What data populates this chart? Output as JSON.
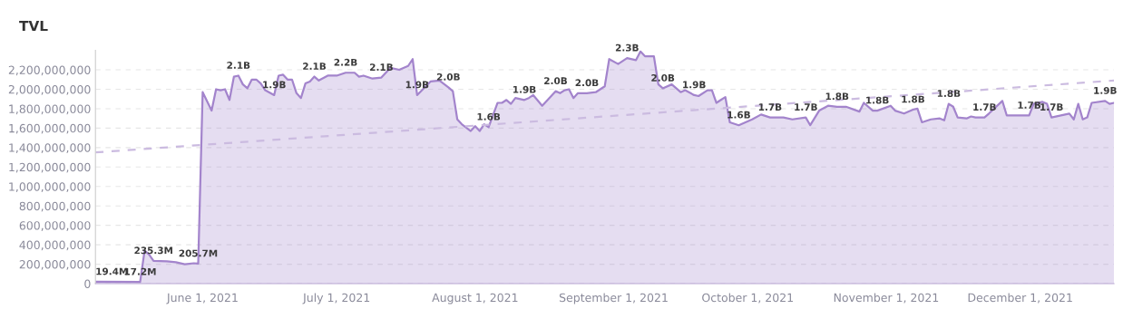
{
  "chart_data": {
    "type": "area",
    "title": "TVL",
    "x": [
      "2021-05-08",
      "2021-05-18",
      "2021-05-19",
      "2021-05-20",
      "2021-05-21",
      "2021-05-24",
      "2021-05-26",
      "2021-05-28",
      "2021-05-30",
      "2021-05-31",
      "2021-06-01",
      "2021-06-03",
      "2021-06-04",
      "2021-06-05",
      "2021-06-06",
      "2021-06-07",
      "2021-06-08",
      "2021-06-09",
      "2021-06-10",
      "2021-06-11",
      "2021-06-12",
      "2021-06-13",
      "2021-06-14",
      "2021-06-15",
      "2021-06-17",
      "2021-06-18",
      "2021-06-19",
      "2021-06-20",
      "2021-06-21",
      "2021-06-22",
      "2021-06-23",
      "2021-06-24",
      "2021-06-25",
      "2021-06-26",
      "2021-06-27",
      "2021-06-29",
      "2021-07-01",
      "2021-07-03",
      "2021-07-05",
      "2021-07-06",
      "2021-07-07",
      "2021-07-09",
      "2021-07-11",
      "2021-07-13",
      "2021-07-15",
      "2021-07-17",
      "2021-07-18",
      "2021-07-19",
      "2021-07-22",
      "2021-07-24",
      "2021-07-26",
      "2021-07-27",
      "2021-07-28",
      "2021-07-29",
      "2021-07-31",
      "2021-08-01",
      "2021-08-02",
      "2021-08-03",
      "2021-08-04",
      "2021-08-06",
      "2021-08-07",
      "2021-08-08",
      "2021-08-09",
      "2021-08-10",
      "2021-08-12",
      "2021-08-13",
      "2021-08-14",
      "2021-08-16",
      "2021-08-19",
      "2021-08-20",
      "2021-08-21",
      "2021-08-22",
      "2021-08-23",
      "2021-08-24",
      "2021-08-26",
      "2021-08-28",
      "2021-08-30",
      "2021-08-31",
      "2021-09-02",
      "2021-09-04",
      "2021-09-06",
      "2021-09-07",
      "2021-09-08",
      "2021-09-10",
      "2021-09-11",
      "2021-09-12",
      "2021-09-14",
      "2021-09-16",
      "2021-09-17",
      "2021-09-19",
      "2021-09-20",
      "2021-09-22",
      "2021-09-23",
      "2021-09-24",
      "2021-09-25",
      "2021-09-26",
      "2021-09-27",
      "2021-09-29",
      "2021-10-02",
      "2021-10-04",
      "2021-10-06",
      "2021-10-09",
      "2021-10-11",
      "2021-10-14",
      "2021-10-15",
      "2021-10-17",
      "2021-10-19",
      "2021-10-21",
      "2021-10-23",
      "2021-10-26",
      "2021-10-27",
      "2021-10-29",
      "2021-10-30",
      "2021-11-02",
      "2021-11-03",
      "2021-11-05",
      "2021-11-07",
      "2021-11-08",
      "2021-11-09",
      "2021-11-11",
      "2021-11-13",
      "2021-11-14",
      "2021-11-15",
      "2021-11-16",
      "2021-11-17",
      "2021-11-19",
      "2021-11-20",
      "2021-11-21",
      "2021-11-23",
      "2021-11-24",
      "2021-11-27",
      "2021-11-28",
      "2021-12-03",
      "2021-12-04",
      "2021-12-06",
      "2021-12-07",
      "2021-12-08",
      "2021-12-12",
      "2021-12-13",
      "2021-12-14",
      "2021-12-15",
      "2021-12-16",
      "2021-12-17",
      "2021-12-20",
      "2021-12-21",
      "2021-12-22"
    ],
    "series": [
      {
        "color": "#a384cc",
        "values": [
          19400000,
          17200000,
          340000000,
          300000000,
          235300000,
          230000000,
          220000000,
          200000000,
          210000000,
          205700000,
          1970000000,
          1780000000,
          2000000000,
          1990000000,
          2000000000,
          1890000000,
          2130000000,
          2140000000,
          2050000000,
          2010000000,
          2100000000,
          2100000000,
          2060000000,
          1990000000,
          1940000000,
          2140000000,
          2150000000,
          2100000000,
          2100000000,
          1960000000,
          1910000000,
          2060000000,
          2080000000,
          2130000000,
          2090000000,
          2140000000,
          2140000000,
          2170000000,
          2170000000,
          2130000000,
          2140000000,
          2110000000,
          2120000000,
          2220000000,
          2200000000,
          2240000000,
          2310000000,
          1940000000,
          2080000000,
          2090000000,
          2020000000,
          1980000000,
          1690000000,
          1640000000,
          1570000000,
          1620000000,
          1570000000,
          1640000000,
          1610000000,
          1860000000,
          1860000000,
          1890000000,
          1850000000,
          1910000000,
          1890000000,
          1910000000,
          1940000000,
          1830000000,
          1980000000,
          1960000000,
          1990000000,
          2000000000,
          1910000000,
          1960000000,
          1960000000,
          1970000000,
          2030000000,
          2310000000,
          2260000000,
          2320000000,
          2300000000,
          2390000000,
          2340000000,
          2340000000,
          2050000000,
          2010000000,
          2050000000,
          1970000000,
          1990000000,
          1940000000,
          1930000000,
          1990000000,
          1990000000,
          1860000000,
          1890000000,
          1920000000,
          1660000000,
          1630000000,
          1690000000,
          1740000000,
          1710000000,
          1710000000,
          1690000000,
          1710000000,
          1630000000,
          1780000000,
          1830000000,
          1820000000,
          1820000000,
          1770000000,
          1860000000,
          1780000000,
          1780000000,
          1830000000,
          1780000000,
          1750000000,
          1790000000,
          1800000000,
          1660000000,
          1690000000,
          1700000000,
          1680000000,
          1850000000,
          1820000000,
          1710000000,
          1700000000,
          1720000000,
          1710000000,
          1710000000,
          1750000000,
          1880000000,
          1730000000,
          1730000000,
          1850000000,
          1870000000,
          1850000000,
          1710000000,
          1750000000,
          1690000000,
          1850000000,
          1690000000,
          1710000000,
          1860000000,
          1880000000,
          1850000000,
          1860000000
        ],
        "value_labels": [
          "19.4M",
          "17.2M",
          null,
          null,
          "235.3M",
          null,
          null,
          null,
          null,
          "205.7M",
          null,
          null,
          null,
          null,
          null,
          null,
          null,
          "2.1B",
          null,
          null,
          null,
          null,
          null,
          null,
          "1.9B",
          null,
          null,
          null,
          null,
          null,
          null,
          null,
          null,
          "2.1B",
          null,
          null,
          null,
          "2.2B",
          null,
          null,
          null,
          null,
          "2.1B",
          null,
          null,
          null,
          null,
          "1.9B",
          null,
          null,
          "2.0B",
          null,
          null,
          null,
          null,
          null,
          null,
          null,
          "1.6B",
          null,
          null,
          null,
          null,
          null,
          "1.9B",
          null,
          null,
          null,
          "2.0B",
          null,
          null,
          null,
          null,
          null,
          "2.0B",
          null,
          null,
          null,
          null,
          "2.3B",
          null,
          null,
          null,
          null,
          null,
          "2.0B",
          null,
          null,
          null,
          "1.9B",
          null,
          null,
          null,
          null,
          null,
          null,
          null,
          "1.6B",
          null,
          null,
          "1.7B",
          null,
          null,
          "1.7B",
          null,
          null,
          null,
          "1.8B",
          null,
          null,
          null,
          null,
          "1.8B",
          null,
          null,
          null,
          "1.8B",
          null,
          null,
          null,
          null,
          null,
          "1.8B",
          null,
          null,
          null,
          null,
          null,
          "1.7B",
          null,
          null,
          null,
          "1.7B",
          null,
          null,
          null,
          "1.7B",
          null,
          null,
          null,
          null,
          null,
          null,
          "1.9B",
          null,
          null
        ]
      },
      {
        "type": "line",
        "color": "#cbbbe0",
        "line_style": "dashed",
        "x": [
          "2021-05-08",
          "2021-12-22"
        ],
        "values": [
          1350000000,
          2090000000
        ]
      }
    ],
    "xlim": [
      "2021-05-08",
      "2021-12-22"
    ],
    "xticks": [
      {
        "value": "2021-06-01",
        "label": "June 1, 2021"
      },
      {
        "value": "2021-07-01",
        "label": "July 1, 2021"
      },
      {
        "value": "2021-08-01",
        "label": "August 1, 2021"
      },
      {
        "value": "2021-09-01",
        "label": "September 1, 2021"
      },
      {
        "value": "2021-10-01",
        "label": "October 1, 2021"
      },
      {
        "value": "2021-11-01",
        "label": "November 1, 2021"
      },
      {
        "value": "2021-12-01",
        "label": "December 1, 2021"
      }
    ],
    "ylim": [
      0,
      2400000000
    ],
    "yticks": [
      0,
      {
        "value": 200000000,
        "label": "200,000,000"
      },
      {
        "value": 400000000,
        "label": "400,000,000"
      },
      {
        "value": 600000000,
        "label": "600,000,000"
      },
      {
        "value": 800000000,
        "label": "800,000,000"
      },
      {
        "value": 1000000000,
        "label": "1,000,000,000"
      },
      {
        "value": 1200000000,
        "label": "1,200,000,000"
      },
      {
        "value": 1400000000,
        "label": "1,400,000,000"
      },
      {
        "value": 1600000000,
        "label": "1,600,000,000"
      },
      {
        "value": 1800000000,
        "label": "1,800,000,000"
      },
      {
        "value": 2000000000,
        "label": "2,000,000,000"
      },
      {
        "value": 2200000000,
        "label": "2,200,000,000"
      }
    ],
    "grid": "y",
    "legend": false
  }
}
